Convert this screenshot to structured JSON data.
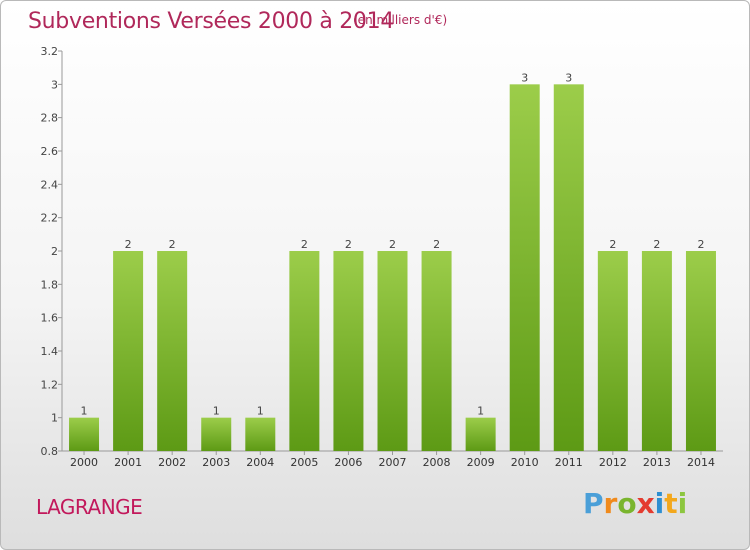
{
  "header": {
    "title": "Subventions Versées 2000 à 2014",
    "subtitle": "(en milliers d'€)"
  },
  "footer": {
    "commune": "LAGRANGE",
    "logo": {
      "letters": [
        "P",
        "r",
        "o",
        "x",
        "i",
        "t",
        "i"
      ],
      "colors": [
        "#4a9fd8",
        "#f08a1c",
        "#7ab52e",
        "#e43b2f",
        "#2e8fd1",
        "#f3a81d",
        "#8cc63f"
      ]
    }
  },
  "colors": {
    "bar_top": "#9ccd4a",
    "bar_bottom": "#5d9a15",
    "title": "#b0285a",
    "axis": "#999999",
    "grid": "#c8c8c8"
  },
  "chart_data": {
    "type": "bar",
    "categories": [
      "2000",
      "2001",
      "2002",
      "2003",
      "2004",
      "2005",
      "2006",
      "2007",
      "2008",
      "2009",
      "2010",
      "2011",
      "2012",
      "2013",
      "2014"
    ],
    "values": [
      1,
      2,
      2,
      1,
      1,
      2,
      2,
      2,
      2,
      1,
      3,
      3,
      2,
      2,
      2
    ],
    "value_labels": [
      "1",
      "2",
      "2",
      "1",
      "1",
      "2",
      "2",
      "2",
      "2",
      "1",
      "3",
      "3",
      "2",
      "2",
      "2"
    ],
    "ylim": [
      0.8,
      3.2
    ],
    "yticks": [
      0.8,
      1,
      1.2,
      1.4,
      1.6,
      1.8,
      2,
      2.2,
      2.4,
      2.6,
      2.8,
      3,
      3.2
    ],
    "ytick_labels": [
      "0.8",
      "1",
      "1.2",
      "1.4",
      "1.6",
      "1.8",
      "2",
      "2.2",
      "2.4",
      "2.6",
      "2.8",
      "3",
      "3.2"
    ],
    "title": "Subventions Versées 2000 à 2014",
    "xlabel": "",
    "ylabel": "",
    "grid": false,
    "legend": "none"
  }
}
